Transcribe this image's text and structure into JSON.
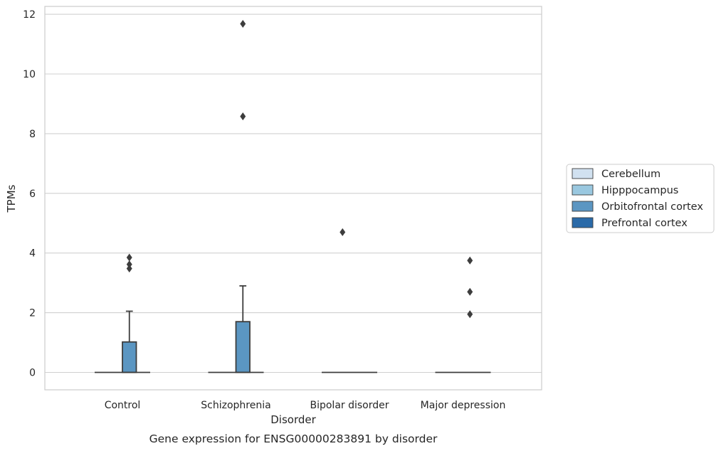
{
  "chart_data": {
    "type": "box",
    "title": "",
    "caption": "Gene expression for ENSG00000283891 by disorder",
    "xlabel": "Disorder",
    "ylabel": "TPMs",
    "ylim": [
      -0.58,
      12.3
    ],
    "yticks": [
      0,
      2,
      4,
      6,
      8,
      10,
      12
    ],
    "grid": "horizontal",
    "legend_position": "right",
    "categories": [
      "Control",
      "Schizophrenia",
      "Bipolar disorder",
      "Major depression"
    ],
    "series": [
      {
        "name": "Cerebellum",
        "color": "#d1e1f0",
        "boxes": [
          {
            "q1": 0,
            "median": 0,
            "q3": 0,
            "whisker_low": 0,
            "whisker_high": 0,
            "outliers": []
          },
          {
            "q1": 0,
            "median": 0,
            "q3": 0,
            "whisker_low": 0,
            "whisker_high": 0,
            "outliers": []
          },
          {
            "q1": 0,
            "median": 0,
            "q3": 0,
            "whisker_low": 0,
            "whisker_high": 0,
            "outliers": []
          },
          {
            "q1": 0,
            "median": 0,
            "q3": 0,
            "whisker_low": 0,
            "whisker_high": 0,
            "outliers": []
          }
        ]
      },
      {
        "name": "Hipppocampus",
        "color": "#9ac8e0",
        "boxes": [
          {
            "q1": 0,
            "median": 0,
            "q3": 0,
            "whisker_low": 0,
            "whisker_high": 0,
            "outliers": []
          },
          {
            "q1": 0,
            "median": 0,
            "q3": 0,
            "whisker_low": 0,
            "whisker_high": 0,
            "outliers": []
          },
          {
            "q1": 0,
            "median": 0,
            "q3": 0,
            "whisker_low": 0,
            "whisker_high": 0,
            "outliers": [
              4.7
            ]
          },
          {
            "q1": 0,
            "median": 0,
            "q3": 0,
            "whisker_low": 0,
            "whisker_high": 0,
            "outliers": []
          }
        ]
      },
      {
        "name": "Orbitofrontal cortex",
        "color": "#5b96c2",
        "boxes": [
          {
            "q1": 0,
            "median": 0,
            "q3": 1.02,
            "whisker_low": 0,
            "whisker_high": 2.05,
            "outliers": [
              3.48,
              3.62,
              3.85
            ]
          },
          {
            "q1": 0,
            "median": 0,
            "q3": 1.7,
            "whisker_low": 0,
            "whisker_high": 2.9,
            "outliers": [
              8.58,
              11.68
            ]
          },
          {
            "q1": 0,
            "median": 0,
            "q3": 0,
            "whisker_low": 0,
            "whisker_high": 0,
            "outliers": []
          },
          {
            "q1": 0,
            "median": 0,
            "q3": 0,
            "whisker_low": 0,
            "whisker_high": 0,
            "outliers": [
              1.95,
              2.7,
              3.75
            ]
          }
        ]
      },
      {
        "name": "Prefrontal cortex",
        "color": "#2a6aa8",
        "boxes": [
          {
            "q1": 0,
            "median": 0,
            "q3": 0,
            "whisker_low": 0,
            "whisker_high": 0,
            "outliers": []
          },
          {
            "q1": 0,
            "median": 0,
            "q3": 0,
            "whisker_low": 0,
            "whisker_high": 0,
            "outliers": []
          },
          {
            "q1": 0,
            "median": 0,
            "q3": 0,
            "whisker_low": 0,
            "whisker_high": 0,
            "outliers": []
          },
          {
            "q1": 0,
            "median": 0,
            "q3": 0,
            "whisker_low": 0,
            "whisker_high": 0,
            "outliers": []
          }
        ]
      }
    ]
  },
  "colors": {
    "grid": "#d0d0d0",
    "frame": "#cccccc",
    "line": "#3d3d3d"
  }
}
